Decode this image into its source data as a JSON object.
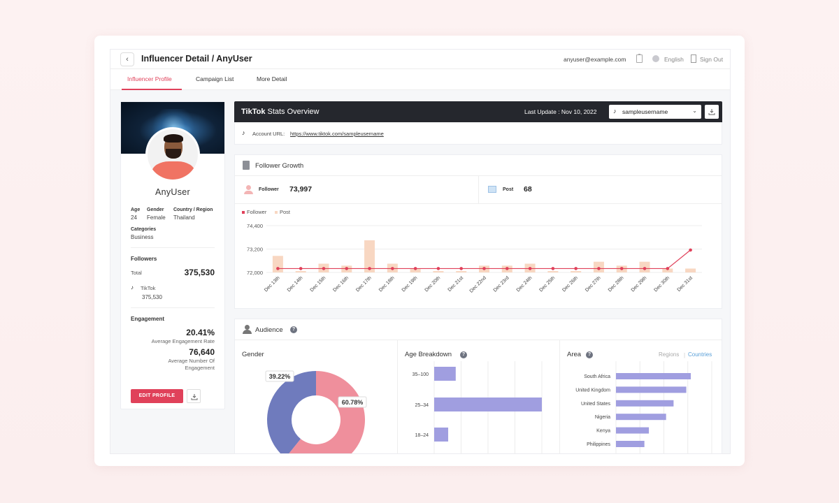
{
  "header": {
    "title": "Influencer Detail / AnyUser",
    "email": "anyuser@example.com",
    "language": "English",
    "sign_out": "Sign Out"
  },
  "tabs": [
    {
      "label": "Influencer Profile",
      "active": true
    },
    {
      "label": "Campaign List",
      "active": false
    },
    {
      "label": "More Detail",
      "active": false
    }
  ],
  "profile": {
    "name": "AnyUser",
    "age_label": "Age",
    "age": "24",
    "gender_label": "Gender",
    "gender": "Female",
    "country_label": "Country / Region",
    "country": "Thailand",
    "categories_label": "Categories",
    "categories": "Business",
    "followers_title": "Followers",
    "total_label": "Total",
    "total": "375,530",
    "tiktok_label": "TikTok",
    "tiktok_count": "375,530",
    "engagement_title": "Engagement",
    "engagement_rate": "20.41%",
    "engagement_rate_label": "Average Engagement Rate",
    "avg_engagement": "76,640",
    "avg_engagement_label_1": "Average Number Of",
    "avg_engagement_label_2": "Engagement",
    "edit_button": "EDIT PROFILE"
  },
  "stats": {
    "title_bold": "TikTok",
    "title_rest": " Stats Overview",
    "last_update": "Last Update : Nov 10, 2022",
    "selected_account": "sampleusername",
    "url_label": "Account URL:",
    "url": "https://www.tiktok.com/sampleusername"
  },
  "growth": {
    "title": "Follower Growth",
    "follower_label": "Follower",
    "follower_value": "73,997",
    "post_label": "Post",
    "post_value": "68"
  },
  "audience": {
    "title": "Audience",
    "gender_title": "Gender",
    "age_title": "Age Breakdown",
    "area_title": "Area",
    "regions_label": "Regions",
    "countries_label": "Countries"
  },
  "colors": {
    "accent": "#e0415a",
    "follower_line": "#e0415a",
    "post_bar": "#f8d7c2",
    "male": "#6f7bbd",
    "female": "#ef8f9c",
    "bar": "#a09ee0"
  },
  "chart_data": [
    {
      "type": "bar",
      "chart": "follower-growth",
      "categories": [
        "Dec 13th",
        "Dec 14th",
        "Dec 15th",
        "Dec 16th",
        "Dec 17th",
        "Dec 18th",
        "Dec 19th",
        "Dec 20th",
        "Dec 21st",
        "Dec 22nd",
        "Dec 23rd",
        "Dec 24th",
        "Dec 25th",
        "Dec 26th",
        "Dec 27th",
        "Dec 28th",
        "Dec 29th",
        "Dec 30th",
        "Dec 31st"
      ],
      "series": [
        {
          "name": "Follower",
          "type": "line",
          "values": [
            72200,
            72200,
            72200,
            72200,
            72200,
            72200,
            72200,
            72200,
            72200,
            72200,
            72200,
            72200,
            72200,
            72200,
            72200,
            72200,
            72200,
            72200,
            73150
          ]
        },
        {
          "name": "Post",
          "type": "bar",
          "values": [
            72850,
            72000,
            72450,
            72350,
            73650,
            72450,
            72200,
            72000,
            72000,
            72350,
            72350,
            72450,
            72000,
            72000,
            72550,
            72350,
            72550,
            72200,
            72200
          ]
        }
      ],
      "yticks": [
        "72,000",
        "73,200",
        "74,400"
      ],
      "ylim": [
        72000,
        74400
      ],
      "legend": "top-left"
    },
    {
      "type": "pie",
      "chart": "gender",
      "labels": [
        "39.22%",
        "60.78%"
      ],
      "values": [
        39.22,
        60.78
      ]
    },
    {
      "type": "bar",
      "chart": "age-breakdown",
      "orientation": "horizontal",
      "categories": [
        "35-100",
        "25-34",
        "18-24"
      ],
      "values": [
        20,
        100,
        13
      ],
      "ylabels": [
        "35–100",
        "25–34",
        "18–24"
      ]
    },
    {
      "type": "bar",
      "chart": "area",
      "orientation": "horizontal",
      "categories": [
        "South Africa",
        "United Kingdom",
        "United States",
        "Nigeria",
        "Kenya",
        "Philippines"
      ],
      "values": [
        100,
        94,
        77,
        67,
        44,
        38
      ]
    }
  ]
}
